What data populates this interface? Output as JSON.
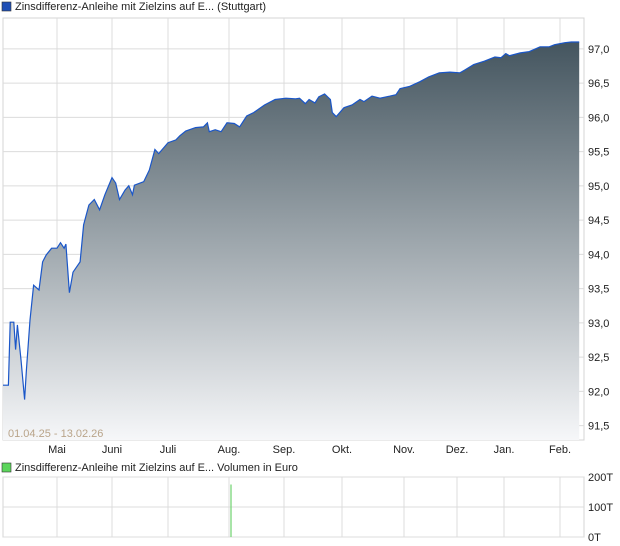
{
  "chart_data": [
    {
      "type": "area",
      "legend": {
        "label": "Zinsdifferenz-Anleihe mit Zielzins auf E... (Stuttgart)",
        "color": "#1f4fb5",
        "placement": "top-left"
      },
      "range_label": "01.04.25 - 13.02.26",
      "line_color": "#1a56c8",
      "fill_gradient": [
        "#44555f",
        "#f6f7f9"
      ],
      "grid": true,
      "ylim": [
        91.29,
        97.45
      ],
      "xlim": [
        "2025-04-01",
        "2026-02-16"
      ],
      "yticks": [
        "91,5",
        "92,0",
        "92,5",
        "93,0",
        "93,5",
        "94,0",
        "94,5",
        "95,0",
        "95,5",
        "96,0",
        "96,5",
        "97,0"
      ],
      "xticks": [
        {
          "date": "2025-05-01",
          "label": "Mai"
        },
        {
          "date": "2025-06-01",
          "label": "Juni"
        },
        {
          "date": "2025-07-01",
          "label": "Juli"
        },
        {
          "date": "2025-08-01",
          "label": "Aug."
        },
        {
          "date": "2025-09-01",
          "label": "Sep."
        },
        {
          "date": "2025-10-01",
          "label": "Okt."
        },
        {
          "date": "2025-11-01",
          "label": "Nov."
        },
        {
          "date": "2025-12-01",
          "label": "Dez."
        },
        {
          "date": "2026-01-01",
          "label": "Jan."
        },
        {
          "date": "2026-02-01",
          "label": "Feb."
        }
      ],
      "points": [
        [
          "2025-04-01",
          92.09
        ],
        [
          "2025-04-04",
          92.09
        ],
        [
          "2025-04-05",
          93.01
        ],
        [
          "2025-04-07",
          93.01
        ],
        [
          "2025-04-08",
          92.61
        ],
        [
          "2025-04-09",
          92.97
        ],
        [
          "2025-04-11",
          92.46
        ],
        [
          "2025-04-13",
          91.88
        ],
        [
          "2025-04-14",
          92.31
        ],
        [
          "2025-04-16",
          93.04
        ],
        [
          "2025-04-18",
          93.55
        ],
        [
          "2025-04-21",
          93.48
        ],
        [
          "2025-04-23",
          93.89
        ],
        [
          "2025-04-25",
          93.99
        ],
        [
          "2025-04-28",
          94.09
        ],
        [
          "2025-05-01",
          94.09
        ],
        [
          "2025-05-03",
          94.17
        ],
        [
          "2025-05-05",
          94.09
        ],
        [
          "2025-05-06",
          94.15
        ],
        [
          "2025-05-08",
          93.44
        ],
        [
          "2025-05-10",
          93.74
        ],
        [
          "2025-05-14",
          93.89
        ],
        [
          "2025-05-16",
          94.43
        ],
        [
          "2025-05-19",
          94.72
        ],
        [
          "2025-05-22",
          94.8
        ],
        [
          "2025-05-25",
          94.65
        ],
        [
          "2025-05-28",
          94.87
        ],
        [
          "2025-06-01",
          95.12
        ],
        [
          "2025-06-03",
          95.04
        ],
        [
          "2025-06-05",
          94.8
        ],
        [
          "2025-06-08",
          94.94
        ],
        [
          "2025-06-10",
          95.0
        ],
        [
          "2025-06-12",
          94.87
        ],
        [
          "2025-06-13",
          95.01
        ],
        [
          "2025-06-18",
          95.06
        ],
        [
          "2025-06-21",
          95.23
        ],
        [
          "2025-06-24",
          95.53
        ],
        [
          "2025-06-26",
          95.47
        ],
        [
          "2025-07-01",
          95.63
        ],
        [
          "2025-07-05",
          95.67
        ],
        [
          "2025-07-07",
          95.73
        ],
        [
          "2025-07-10",
          95.8
        ],
        [
          "2025-07-15",
          95.85
        ],
        [
          "2025-07-19",
          95.86
        ],
        [
          "2025-07-21",
          95.92
        ],
        [
          "2025-07-22",
          95.79
        ],
        [
          "2025-07-25",
          95.82
        ],
        [
          "2025-07-28",
          95.79
        ],
        [
          "2025-07-31",
          95.92
        ],
        [
          "2025-08-04",
          95.91
        ],
        [
          "2025-08-07",
          95.86
        ],
        [
          "2025-08-11",
          96.02
        ],
        [
          "2025-08-15",
          96.07
        ],
        [
          "2025-08-21",
          96.18
        ],
        [
          "2025-08-27",
          96.26
        ],
        [
          "2025-09-02",
          96.28
        ],
        [
          "2025-09-07",
          96.27
        ],
        [
          "2025-09-09",
          96.28
        ],
        [
          "2025-09-12",
          96.2
        ],
        [
          "2025-09-14",
          96.26
        ],
        [
          "2025-09-17",
          96.21
        ],
        [
          "2025-09-19",
          96.3
        ],
        [
          "2025-09-22",
          96.34
        ],
        [
          "2025-09-25",
          96.26
        ],
        [
          "2025-09-26",
          96.07
        ],
        [
          "2025-09-28",
          96.01
        ],
        [
          "2025-10-02",
          96.14
        ],
        [
          "2025-10-06",
          96.18
        ],
        [
          "2025-10-10",
          96.26
        ],
        [
          "2025-10-12",
          96.23
        ],
        [
          "2025-10-16",
          96.31
        ],
        [
          "2025-10-20",
          96.28
        ],
        [
          "2025-10-25",
          96.31
        ],
        [
          "2025-10-28",
          96.33
        ],
        [
          "2025-10-30",
          96.42
        ],
        [
          "2025-11-04",
          96.45
        ],
        [
          "2025-11-10",
          96.52
        ],
        [
          "2025-11-15",
          96.59
        ],
        [
          "2025-11-21",
          96.65
        ],
        [
          "2025-11-27",
          96.66
        ],
        [
          "2025-12-03",
          96.65
        ],
        [
          "2025-12-06",
          96.69
        ],
        [
          "2025-12-12",
          96.77
        ],
        [
          "2025-12-19",
          96.82
        ],
        [
          "2025-12-26",
          96.88
        ],
        [
          "2025-12-30",
          96.87
        ],
        [
          "2026-01-02",
          96.93
        ],
        [
          "2026-01-04",
          96.9
        ],
        [
          "2026-01-10",
          96.94
        ],
        [
          "2026-01-15",
          96.96
        ],
        [
          "2026-01-21",
          97.03
        ],
        [
          "2026-01-26",
          97.03
        ],
        [
          "2026-01-29",
          97.06
        ],
        [
          "2026-02-04",
          97.09
        ],
        [
          "2026-02-08",
          97.1
        ],
        [
          "2026-02-13",
          97.1
        ]
      ]
    },
    {
      "type": "bar",
      "legend": {
        "label": "Zinsdifferenz-Anleihe mit Zielzins auf E... Volumen in Euro",
        "color": "#5cd65c",
        "placement": "top-left"
      },
      "bar_color": "#6fd36f",
      "ylim": [
        0,
        200
      ],
      "yticks": [
        "0T",
        "100T",
        "200T"
      ],
      "bars": [
        [
          "2025-08-01",
          175
        ]
      ]
    }
  ]
}
